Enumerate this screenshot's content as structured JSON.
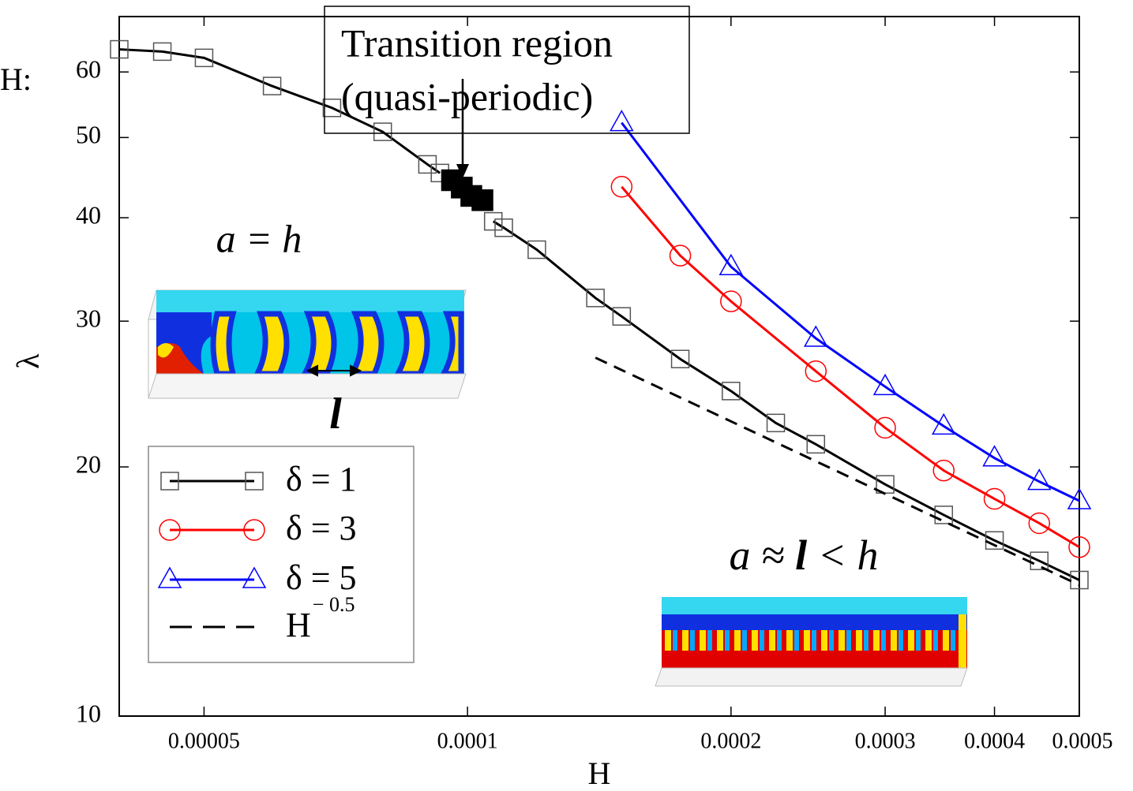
{
  "chart_data": {
    "type": "line",
    "cropped_label": "H:",
    "xlabel": "H",
    "ylabel": "λ",
    "xscale": "log",
    "yscale": "log",
    "xlim": [
      4e-05,
      0.0005
    ],
    "ylim": [
      10,
      70
    ],
    "xticks": [
      5e-05,
      0.0001,
      0.0002,
      0.0003,
      0.0004,
      0.0005
    ],
    "yticks": [
      10,
      20,
      30,
      40,
      50,
      60
    ],
    "legend": "lower left",
    "series": [
      {
        "name": "δ = 1",
        "color": "#000000",
        "marker": "square",
        "x": [
          4e-05,
          4.48e-05,
          5e-05,
          5.98e-05,
          7e-05,
          8e-05,
          9e-05,
          9.3e-05,
          0.0001,
          0.000107,
          0.00011,
          0.00012,
          0.00014,
          0.00015,
          0.000175,
          0.0002,
          0.000225,
          0.00025,
          0.0003,
          0.00035,
          0.0004,
          0.00045,
          0.0005
        ],
        "values": [
          63.9,
          63.5,
          62.4,
          57.7,
          54.3,
          50.8,
          46.4,
          45.3,
          null,
          39.6,
          38.9,
          36.6,
          32.0,
          30.4,
          27.0,
          24.7,
          22.6,
          21.3,
          19.05,
          17.5,
          16.3,
          15.4,
          14.6
        ]
      },
      {
        "name": "δ = 3",
        "color": "#ff0000",
        "marker": "circle",
        "x": [
          0.00015,
          0.000175,
          0.0002,
          0.00025,
          0.0003,
          0.00035,
          0.0004,
          0.00045,
          0.0005
        ],
        "values": [
          43.6,
          36.0,
          31.7,
          26.1,
          22.3,
          19.8,
          18.3,
          17.1,
          16.0
        ]
      },
      {
        "name": "δ = 5",
        "color": "#0000ff",
        "marker": "triangle",
        "x": [
          0.00015,
          0.0002,
          0.00025,
          0.0003,
          0.00035,
          0.0004,
          0.00045,
          0.0005
        ],
        "values": [
          52.1,
          34.9,
          28.6,
          25.0,
          22.4,
          20.5,
          19.2,
          18.2
        ]
      },
      {
        "name": "H",
        "name_superscript": "− 0.5",
        "color": "#000000",
        "marker": "none",
        "dashed": true,
        "x": [
          0.00014,
          0.0005
        ],
        "values": [
          27.1,
          14.4
        ]
      }
    ],
    "transition_points": {
      "color": "#000000",
      "x": [
        9.6e-05,
        9.85e-05,
        0.000101,
        0.000104
      ],
      "values": [
        44.4,
        43.5,
        42.5,
        42.0
      ]
    },
    "annotations": {
      "transition_box": [
        "Transition region",
        "(quasi-periodic)"
      ],
      "left_label": "a = h",
      "left_length": "l",
      "right_label": [
        "a ≈ ",
        "l",
        " < h"
      ]
    }
  }
}
